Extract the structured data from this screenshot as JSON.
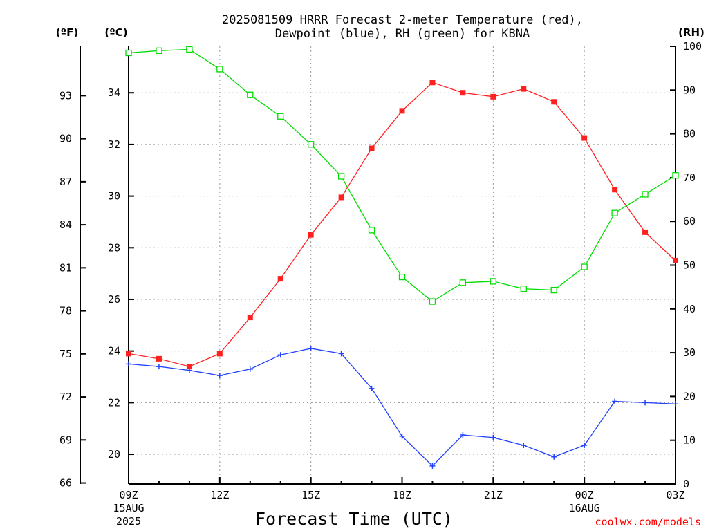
{
  "chart_data": {
    "type": "line",
    "title_line1": "2025081509 HRRR Forecast 2-meter Temperature (red),",
    "title_line2": "Dewpoint (blue), RH (green) for KBNA",
    "xlabel": "Forecast Time (UTC)",
    "credit": "coolwx.com/models",
    "units": {
      "fahrenheit": "(ºF)",
      "celsius": "(ºC)",
      "rh": "(RH)"
    },
    "x_hours": [
      0,
      1,
      2,
      3,
      4,
      5,
      6,
      7,
      8,
      9,
      10,
      11,
      12,
      13,
      14,
      15,
      16,
      17,
      18
    ],
    "x_ticks": [
      {
        "hour": 0,
        "label": "09Z",
        "sub1": "15AUG",
        "sub2": "2025"
      },
      {
        "hour": 3,
        "label": "12Z"
      },
      {
        "hour": 6,
        "label": "15Z"
      },
      {
        "hour": 9,
        "label": "18Z"
      },
      {
        "hour": 12,
        "label": "21Z"
      },
      {
        "hour": 15,
        "label": "00Z",
        "sub1": "16AUG"
      },
      {
        "hour": 18,
        "label": "03Z"
      }
    ],
    "ylim_celsius": [
      18.85,
      35.8
    ],
    "ylim_rh": [
      0,
      100
    ],
    "y_ticks_celsius": [
      20,
      22,
      24,
      26,
      28,
      30,
      32,
      34
    ],
    "y_ticks_fahrenheit": [
      66,
      69,
      72,
      75,
      78,
      81,
      84,
      87,
      90,
      93
    ],
    "y_ticks_rh": [
      0,
      10,
      20,
      30,
      40,
      50,
      60,
      70,
      80,
      90,
      100
    ],
    "grid": true,
    "series": [
      {
        "name": "Temperature",
        "color": "#ff2020",
        "marker": "filled-square",
        "axis": "celsius",
        "values": [
          23.9,
          23.7,
          23.4,
          23.9,
          25.3,
          26.8,
          28.5,
          29.95,
          31.85,
          33.3,
          34.4,
          34.0,
          33.85,
          34.15,
          33.65,
          32.25,
          30.25,
          28.6,
          27.5
        ]
      },
      {
        "name": "Dewpoint",
        "color": "#2040ff",
        "marker": "plus",
        "axis": "celsius",
        "values": [
          23.5,
          23.4,
          23.25,
          23.05,
          23.3,
          23.85,
          24.1,
          23.9,
          22.55,
          20.7,
          19.55,
          20.75,
          20.65,
          20.35,
          19.9,
          20.35,
          22.05,
          22.0,
          21.95
        ]
      },
      {
        "name": "RH",
        "color": "#00dd00",
        "marker": "open-square",
        "axis": "rh",
        "values": [
          98.5,
          99.0,
          99.3,
          94.8,
          88.9,
          84.0,
          77.6,
          70.3,
          58.0,
          47.3,
          41.7,
          46.0,
          46.3,
          44.6,
          44.3,
          49.6,
          61.9,
          66.2,
          70.5
        ]
      }
    ]
  }
}
